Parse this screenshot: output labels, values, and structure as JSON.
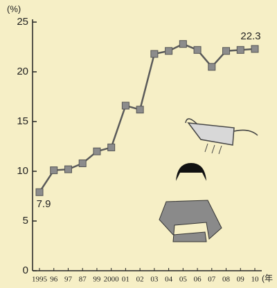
{
  "chart_data": {
    "type": "line",
    "y_label": "(%)",
    "x_label": "(年",
    "categories": [
      "1995",
      "96",
      "97",
      "87",
      "99",
      "2000",
      "01",
      "02",
      "03",
      "04",
      "05",
      "06",
      "07",
      "08",
      "09",
      "10"
    ],
    "series": [
      {
        "color": "#5a5a5a",
        "values": [
          7.9,
          10.1,
          10.2,
          10.8,
          12.0,
          12.4,
          16.6,
          16.2,
          21.8,
          22.1,
          22.8,
          22.2,
          20.5,
          22.1,
          22.2,
          22.3
        ],
        "value_labels": [
          "7.9",
          null,
          null,
          null,
          null,
          null,
          null,
          null,
          null,
          null,
          null,
          null,
          null,
          null,
          null,
          "22.3"
        ]
      }
    ],
    "ylim": [
      0,
      25
    ],
    "yticks": [
      0,
      5,
      10,
      15,
      20,
      25
    ]
  }
}
